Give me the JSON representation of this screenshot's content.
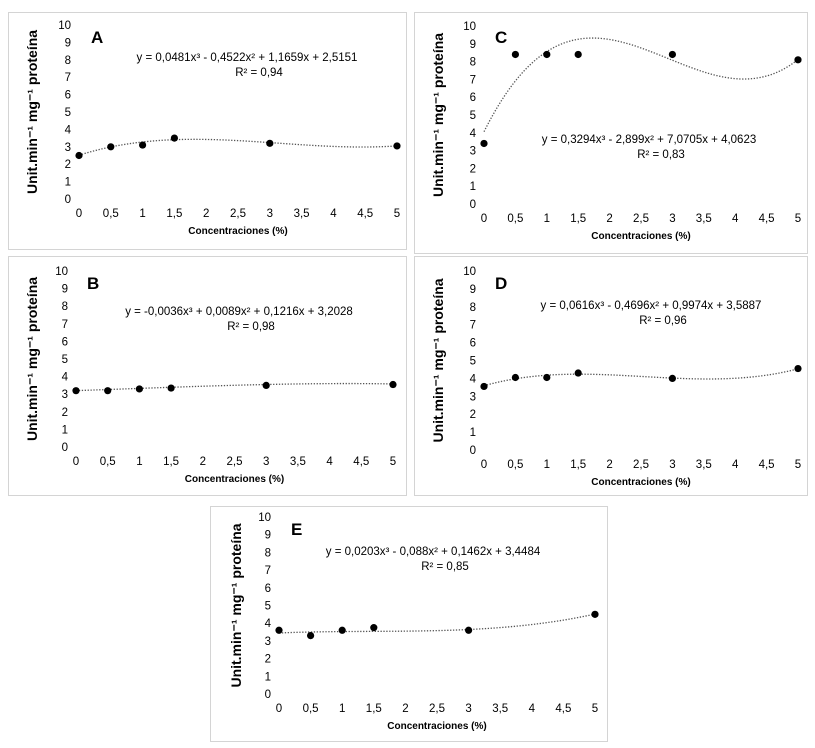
{
  "chart_data": [
    {
      "id": "A",
      "type": "scatter",
      "letter": "A",
      "xlabel": "Concentraciones (%)",
      "ylabel": "Unit.min⁻¹ mg⁻¹ proteína",
      "xlim": [
        0,
        5
      ],
      "ylim": [
        0,
        10
      ],
      "xticks": [
        "0",
        "0,5",
        "1",
        "1,5",
        "2",
        "2,5",
        "3",
        "3,5",
        "4",
        "4,5",
        "5"
      ],
      "yticks": [
        "0",
        "1",
        "2",
        "3",
        "4",
        "5",
        "6",
        "7",
        "8",
        "9",
        "10"
      ],
      "x": [
        0,
        0.5,
        1,
        1.5,
        3,
        5
      ],
      "y": [
        2.5,
        3.0,
        3.1,
        3.5,
        3.2,
        3.05
      ],
      "trendline": {
        "type": "polynomial",
        "degree": 3,
        "coefficients": [
          0.0481,
          -0.4522,
          1.1659,
          2.5151
        ]
      },
      "equation": "y = 0,0481x³ - 0,4522x² + 1,1659x + 2,5151",
      "r2": "R² = 0,94",
      "grid": false
    },
    {
      "id": "C",
      "type": "scatter",
      "letter": "C",
      "xlabel": "Concentraciones (%)",
      "ylabel": "Unit.min⁻¹ mg⁻¹ proteína",
      "xlim": [
        0,
        5
      ],
      "ylim": [
        0,
        10
      ],
      "xticks": [
        "0",
        "0,5",
        "1",
        "1,5",
        "2",
        "2,5",
        "3",
        "3,5",
        "4",
        "4,5",
        "5"
      ],
      "yticks": [
        "0",
        "1",
        "2",
        "3",
        "4",
        "5",
        "6",
        "7",
        "8",
        "9",
        "10"
      ],
      "x": [
        0,
        0.5,
        1,
        1.5,
        3,
        5
      ],
      "y": [
        3.4,
        8.4,
        8.4,
        8.4,
        8.4,
        8.1
      ],
      "trendline": {
        "type": "polynomial",
        "degree": 3,
        "coefficients": [
          0.3294,
          -2.899,
          7.0705,
          4.0623
        ]
      },
      "equation": "y = 0,3294x³ - 2,899x² + 7,0705x + 4,0623",
      "r2": "R² = 0,83",
      "grid": false
    },
    {
      "id": "B",
      "type": "scatter",
      "letter": "B",
      "xlabel": "Concentraciones (%)",
      "ylabel": "Unit.min⁻¹ mg⁻¹ proteína",
      "xlim": [
        0,
        5
      ],
      "ylim": [
        0,
        10
      ],
      "xticks": [
        "0",
        "0,5",
        "1",
        "1,5",
        "2",
        "2,5",
        "3",
        "3,5",
        "4",
        "4,5",
        "5"
      ],
      "yticks": [
        "0",
        "1",
        "2",
        "3",
        "4",
        "5",
        "6",
        "7",
        "8",
        "9",
        "10"
      ],
      "x": [
        0,
        0.5,
        1,
        1.5,
        3,
        5
      ],
      "y": [
        3.2,
        3.2,
        3.3,
        3.35,
        3.5,
        3.55
      ],
      "trendline": {
        "type": "polynomial",
        "degree": 3,
        "coefficients": [
          -0.0036,
          0.0089,
          0.1216,
          3.2028
        ]
      },
      "equation": "y = -0,0036x³ + 0,0089x² + 0,1216x + 3,2028",
      "r2": "R² = 0,98",
      "grid": false
    },
    {
      "id": "D",
      "type": "scatter",
      "letter": "D",
      "xlabel": "Concentraciones (%)",
      "ylabel": "Unit.min⁻¹ mg⁻¹ proteína",
      "xlim": [
        0,
        5
      ],
      "ylim": [
        0,
        10
      ],
      "xticks": [
        "0",
        "0,5",
        "1",
        "1,5",
        "2",
        "2,5",
        "3",
        "3,5",
        "4",
        "4,5",
        "5"
      ],
      "yticks": [
        "0",
        "1",
        "2",
        "3",
        "4",
        "5",
        "6",
        "7",
        "8",
        "9",
        "10"
      ],
      "x": [
        0,
        0.5,
        1,
        1.5,
        3,
        5
      ],
      "y": [
        3.55,
        4.05,
        4.05,
        4.3,
        4.0,
        4.55
      ],
      "trendline": {
        "type": "polynomial",
        "degree": 3,
        "coefficients": [
          0.0616,
          -0.4696,
          0.9974,
          3.5887
        ]
      },
      "equation": "y = 0,0616x³ - 0,4696x² + 0,9974x + 3,5887",
      "r2": "R² = 0,96",
      "grid": false
    },
    {
      "id": "E",
      "type": "scatter",
      "letter": "E",
      "xlabel": "Concentraciones (%)",
      "ylabel": "Unit.min⁻¹ mg⁻¹ proteína",
      "xlim": [
        0,
        5
      ],
      "ylim": [
        0,
        10
      ],
      "xticks": [
        "0",
        "0,5",
        "1",
        "1,5",
        "2",
        "2,5",
        "3",
        "3,5",
        "4",
        "4,5",
        "5"
      ],
      "yticks": [
        "0",
        "1",
        "2",
        "3",
        "4",
        "5",
        "6",
        "7",
        "8",
        "9",
        "10"
      ],
      "x": [
        0,
        0.5,
        1,
        1.5,
        3,
        5
      ],
      "y": [
        3.6,
        3.3,
        3.6,
        3.75,
        3.6,
        4.5
      ],
      "trendline": {
        "type": "polynomial",
        "degree": 3,
        "coefficients": [
          0.0203,
          -0.088,
          0.1462,
          3.4484
        ]
      },
      "equation": "y = 0,0203x³ - 0,088x² + 0,1462x + 3,4484",
      "r2": "R² = 0,85",
      "grid": false
    }
  ]
}
